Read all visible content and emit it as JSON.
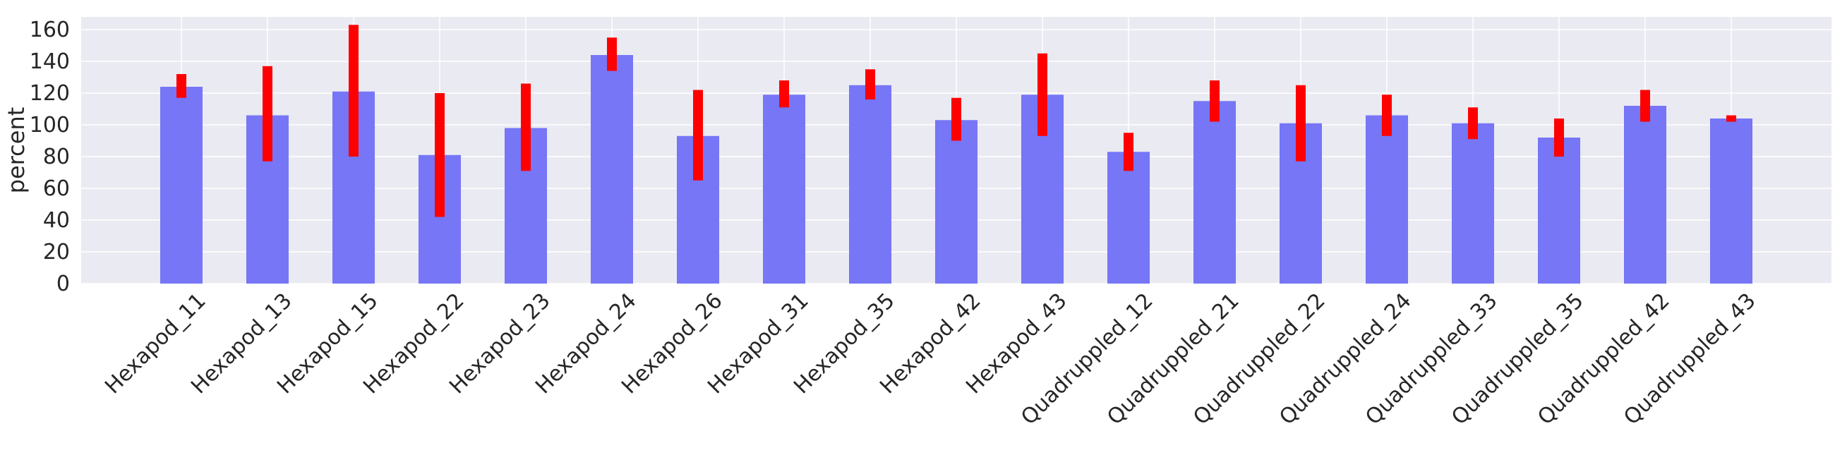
{
  "chart_data": {
    "type": "bar",
    "title": "",
    "xlabel": "",
    "ylabel": "percent",
    "ylim": [
      0,
      168
    ],
    "yticks": [
      0,
      20,
      40,
      60,
      80,
      100,
      120,
      140,
      160
    ],
    "grid": true,
    "legend": "none",
    "categories": [
      "Hexapod_11",
      "Hexapod_13",
      "Hexapod_15",
      "Hexapod_22",
      "Hexapod_23",
      "Hexapod_24",
      "Hexapod_26",
      "Hexapod_31",
      "Hexapod_35",
      "Hexapod_42",
      "Hexapod_43",
      "Quadruppled_12",
      "Quadruppled_21",
      "Quadruppled_22",
      "Quadruppled_24",
      "Quadruppled_33",
      "Quadruppled_35",
      "Quadruppled_42",
      "Quadruppled_43"
    ],
    "values": [
      124,
      106,
      121,
      81,
      98,
      144,
      93,
      119,
      125,
      103,
      119,
      83,
      115,
      101,
      106,
      101,
      92,
      112,
      104
    ],
    "error_low": [
      117,
      77,
      80,
      42,
      71,
      134,
      65,
      111,
      116,
      90,
      93,
      71,
      102,
      77,
      93,
      91,
      80,
      102,
      102
    ],
    "error_high": [
      132,
      137,
      163,
      120,
      126,
      155,
      122,
      128,
      135,
      117,
      145,
      95,
      128,
      125,
      119,
      111,
      104,
      122,
      106
    ],
    "colors": {
      "bar": "#7676f7",
      "error": "#ff0000",
      "plot_background": "#eaeaf2",
      "grid": "#ffffff",
      "text": "#262626"
    }
  }
}
